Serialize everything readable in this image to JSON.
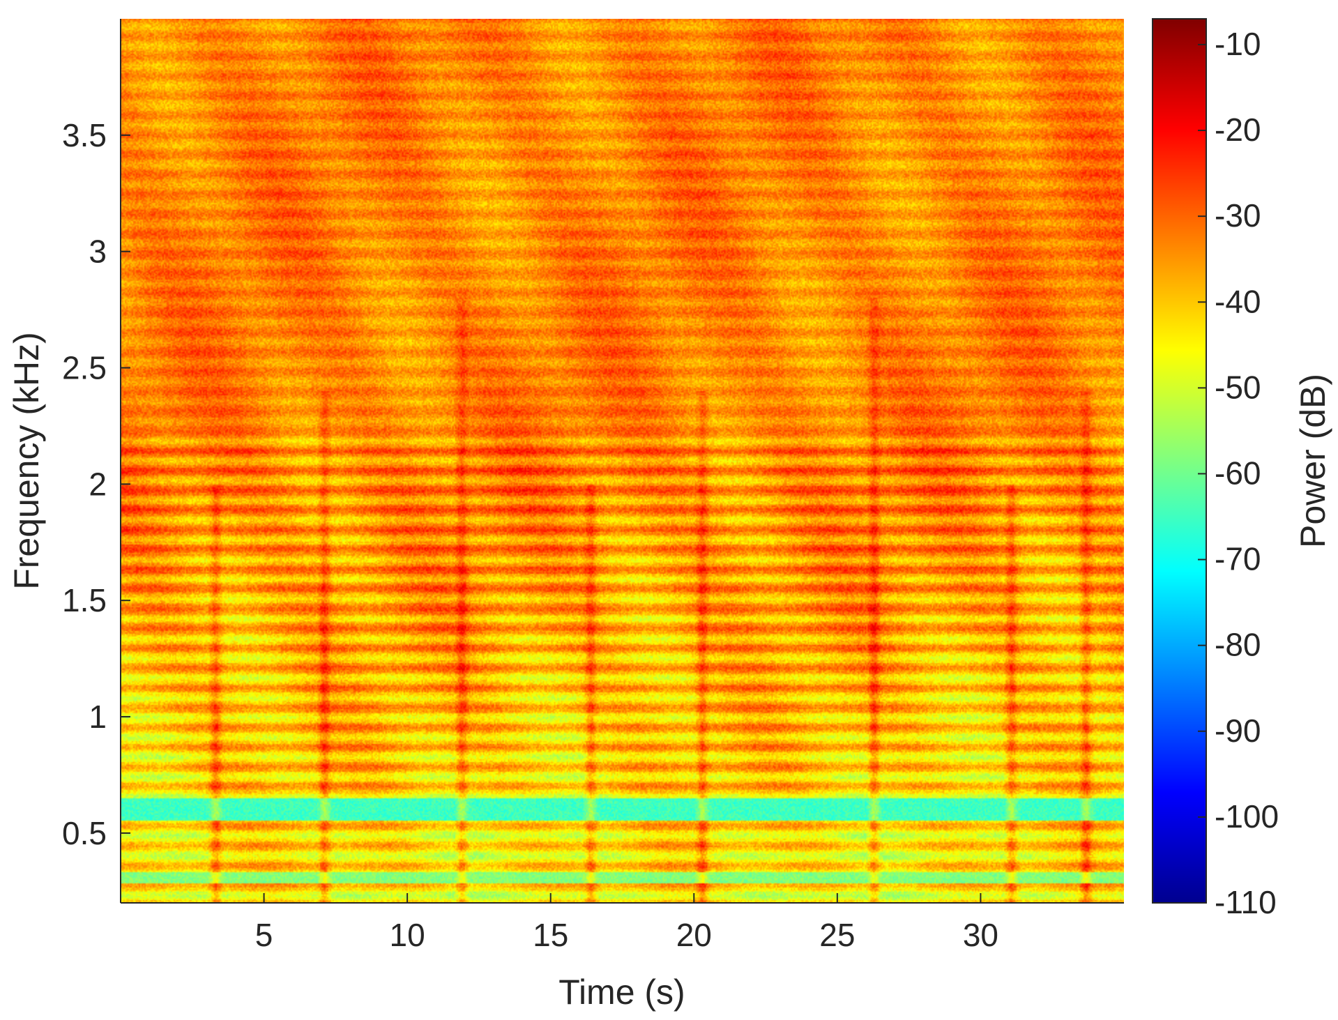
{
  "chart_data": {
    "type": "heatmap",
    "title": "",
    "xlabel": "Time (s)",
    "ylabel": "Frequency (kHz)",
    "colorbar_label": "Power (dB)",
    "xlim": [
      0,
      35
    ],
    "ylim": [
      0.2,
      4.0
    ],
    "clim": [
      -110,
      -7
    ],
    "colormap": "jet",
    "x_ticks": [
      5,
      10,
      15,
      20,
      25,
      30
    ],
    "x_tick_labels": [
      "5",
      "10",
      "15",
      "20",
      "25",
      "30"
    ],
    "y_ticks": [
      0.5,
      1,
      1.5,
      2,
      2.5,
      3,
      3.5
    ],
    "y_tick_labels": [
      "0.5",
      "1",
      "1.5",
      "2",
      "2.5",
      "3",
      "3.5"
    ],
    "colorbar_ticks": [
      -10,
      -20,
      -30,
      -40,
      -50,
      -60,
      -70,
      -80,
      -90,
      -100,
      -110
    ],
    "colorbar_tick_labels": [
      "-10",
      "-20",
      "-30",
      "-40",
      "-50",
      "-60",
      "-70",
      "-80",
      "-90",
      "-100",
      "-110"
    ],
    "grid": false,
    "summary": {
      "typical_power_db_high_freq": -33,
      "typical_power_db_low_freq": -45,
      "low_power_band_khz": [
        0.55,
        0.65
      ],
      "low_power_band_db": -65,
      "onset_times_s": [
        3.2,
        7.0,
        11.8,
        16.3,
        20.2,
        26.2,
        31.0,
        33.6
      ]
    }
  }
}
